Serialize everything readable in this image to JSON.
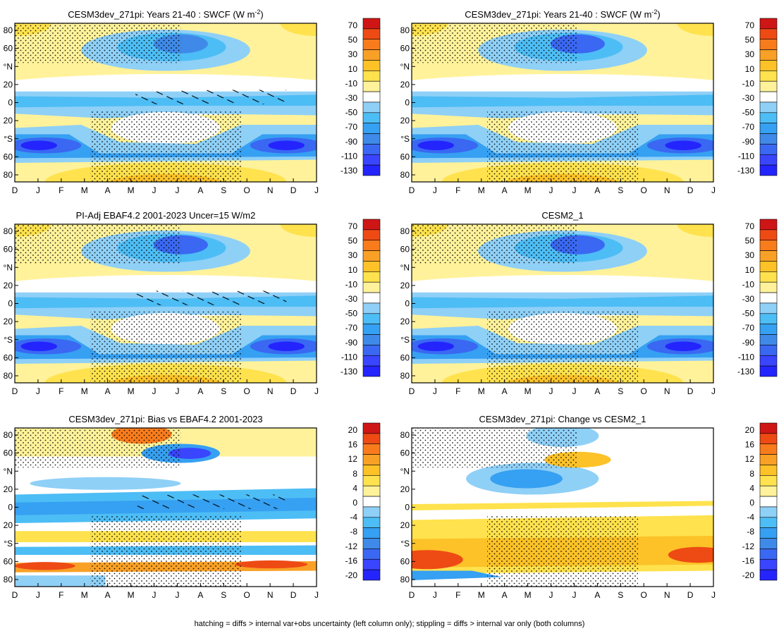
{
  "footer": "hatching = diffs > internal var+obs uncertainty (left column only); stippling = diffs > internal var only (both columns)",
  "colors": {
    "abs_scale": [
      "#2424ff",
      "#3a45ff",
      "#3a68f2",
      "#3f8ae8",
      "#36a0f2",
      "#4dbdf5",
      "#8fd0f7",
      "#ffffff",
      "#fff29a",
      "#ffe24d",
      "#fcc228",
      "#f9a126",
      "#f97c1c",
      "#ee4a14",
      "#cf1616"
    ],
    "diff_scale": [
      "#2424ff",
      "#3a45ff",
      "#3a68f2",
      "#3f8ae8",
      "#36a0f2",
      "#4dbdf5",
      "#8fd0f7",
      "#ffffff",
      "#fff29a",
      "#ffe24d",
      "#fcc228",
      "#f9a126",
      "#f97c1c",
      "#ee4a14",
      "#cf1616"
    ]
  },
  "chart_data": [
    {
      "type": "heatmap",
      "title_main": "CESM3dev_271pi: Years 21-40 : SWCF (W m",
      "title_sup": "-2",
      "title_tail": ")",
      "x_tick_labels": [
        "D",
        "J",
        "F",
        "M",
        "A",
        "M",
        "J",
        "J",
        "A",
        "S",
        "O",
        "N",
        "D",
        "J"
      ],
      "y_tick_labels": [
        "80",
        "60",
        "°N",
        "20",
        "0",
        "20",
        "°S",
        "60",
        "80"
      ],
      "colorbar_labels": [
        "70",
        "50",
        "30",
        "10",
        "-10",
        "-30",
        "-50",
        "-70",
        "-90",
        "-110",
        "-130"
      ],
      "scale": "abs",
      "hatched": true,
      "stippled": true
    },
    {
      "type": "heatmap",
      "title_main": "CESM3dev_271pi: Years 21-40 : SWCF (W m",
      "title_sup": "-2",
      "title_tail": ")",
      "x_tick_labels": [
        "D",
        "J",
        "F",
        "M",
        "A",
        "M",
        "J",
        "J",
        "A",
        "S",
        "O",
        "N",
        "D",
        "J"
      ],
      "y_tick_labels": [
        "80",
        "60",
        "°N",
        "20",
        "0",
        "20",
        "°S",
        "60",
        "80"
      ],
      "colorbar_labels": [
        "70",
        "50",
        "30",
        "10",
        "-10",
        "-30",
        "-50",
        "-70",
        "-90",
        "-110",
        "-130"
      ],
      "scale": "abs",
      "hatched": false,
      "stippled": true
    },
    {
      "type": "heatmap",
      "title_main": "PI-Adj EBAF4.2 2001-2023 Uncer=15 W/m2",
      "title_sup": "",
      "title_tail": "",
      "x_tick_labels": [
        "D",
        "J",
        "F",
        "M",
        "A",
        "M",
        "J",
        "J",
        "A",
        "S",
        "O",
        "N",
        "D",
        "J"
      ],
      "y_tick_labels": [
        "80",
        "60",
        "°N",
        "20",
        "0",
        "20",
        "°S",
        "60",
        "80"
      ],
      "colorbar_labels": [
        "70",
        "50",
        "30",
        "10",
        "-10",
        "-30",
        "-50",
        "-70",
        "-90",
        "-110",
        "-130"
      ],
      "scale": "abs",
      "hatched": true,
      "stippled": true
    },
    {
      "type": "heatmap",
      "title_main": "CESM2_1",
      "title_sup": "",
      "title_tail": "",
      "x_tick_labels": [
        "D",
        "J",
        "F",
        "M",
        "A",
        "M",
        "J",
        "J",
        "A",
        "S",
        "O",
        "N",
        "D",
        "J"
      ],
      "y_tick_labels": [
        "80",
        "60",
        "°N",
        "20",
        "0",
        "20",
        "°S",
        "60",
        "80"
      ],
      "colorbar_labels": [
        "70",
        "50",
        "30",
        "10",
        "-10",
        "-30",
        "-50",
        "-70",
        "-90",
        "-110",
        "-130"
      ],
      "scale": "abs",
      "hatched": false,
      "stippled": true
    },
    {
      "type": "heatmap",
      "title_main": "CESM3dev_271pi: Bias vs EBAF4.2 2001-2023",
      "title_sup": "",
      "title_tail": "",
      "x_tick_labels": [
        "D",
        "J",
        "F",
        "M",
        "A",
        "M",
        "J",
        "J",
        "A",
        "S",
        "O",
        "N",
        "D",
        "J"
      ],
      "y_tick_labels": [
        "80",
        "60",
        "°N",
        "20",
        "0",
        "20",
        "°S",
        "60",
        "80"
      ],
      "colorbar_labels": [
        "20",
        "16",
        "12",
        "8",
        "4",
        "0",
        "-4",
        "-8",
        "-12",
        "-16",
        "-20"
      ],
      "scale": "diff",
      "hatched": true,
      "stippled": true
    },
    {
      "type": "heatmap",
      "title_main": "CESM3dev_271pi: Change vs CESM2_1",
      "title_sup": "",
      "title_tail": "",
      "x_tick_labels": [
        "D",
        "J",
        "F",
        "M",
        "A",
        "M",
        "J",
        "J",
        "A",
        "S",
        "O",
        "N",
        "D",
        "J"
      ],
      "y_tick_labels": [
        "80",
        "60",
        "°N",
        "20",
        "0",
        "20",
        "°S",
        "60",
        "80"
      ],
      "colorbar_labels": [
        "20",
        "16",
        "12",
        "8",
        "4",
        "0",
        "-4",
        "-8",
        "-12",
        "-16",
        "-20"
      ],
      "scale": "diff",
      "hatched": false,
      "stippled": true
    }
  ]
}
